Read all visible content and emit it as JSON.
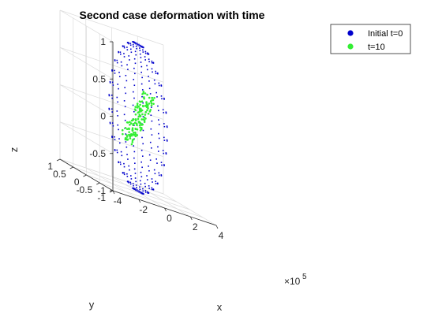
{
  "chart_data": {
    "type": "scatter",
    "title": "Second case deformation with time",
    "xlabel": "x",
    "ylabel": "y",
    "zlabel": "z",
    "x_exponent_label": "×10",
    "x_exponent_power": "5",
    "xlim": [
      -4,
      4
    ],
    "ylim": [
      -1,
      1
    ],
    "zlim": [
      -1,
      1
    ],
    "x_ticks": [
      "-4",
      "-2",
      "0",
      "2",
      "4"
    ],
    "y_ticks": [
      "-1",
      "-0.5",
      "0",
      "0.5",
      "1"
    ],
    "z_ticks": [
      "-1",
      "-0.5",
      "0",
      "0.5",
      "1"
    ],
    "grid": true,
    "legend_position": "top-right",
    "series": [
      {
        "name": "Initial t=0",
        "color": "#0000cc",
        "shape": "sphere",
        "radius": 1,
        "rings": 17,
        "per_ring": 20
      },
      {
        "name": "t=10",
        "color": "#33ee33",
        "shape": "sheared line",
        "x_range": [
          -4,
          4
        ],
        "y_range": [
          -0.25,
          0.25
        ],
        "z_range": [
          -0.35,
          0.35
        ],
        "count": 140
      }
    ]
  }
}
